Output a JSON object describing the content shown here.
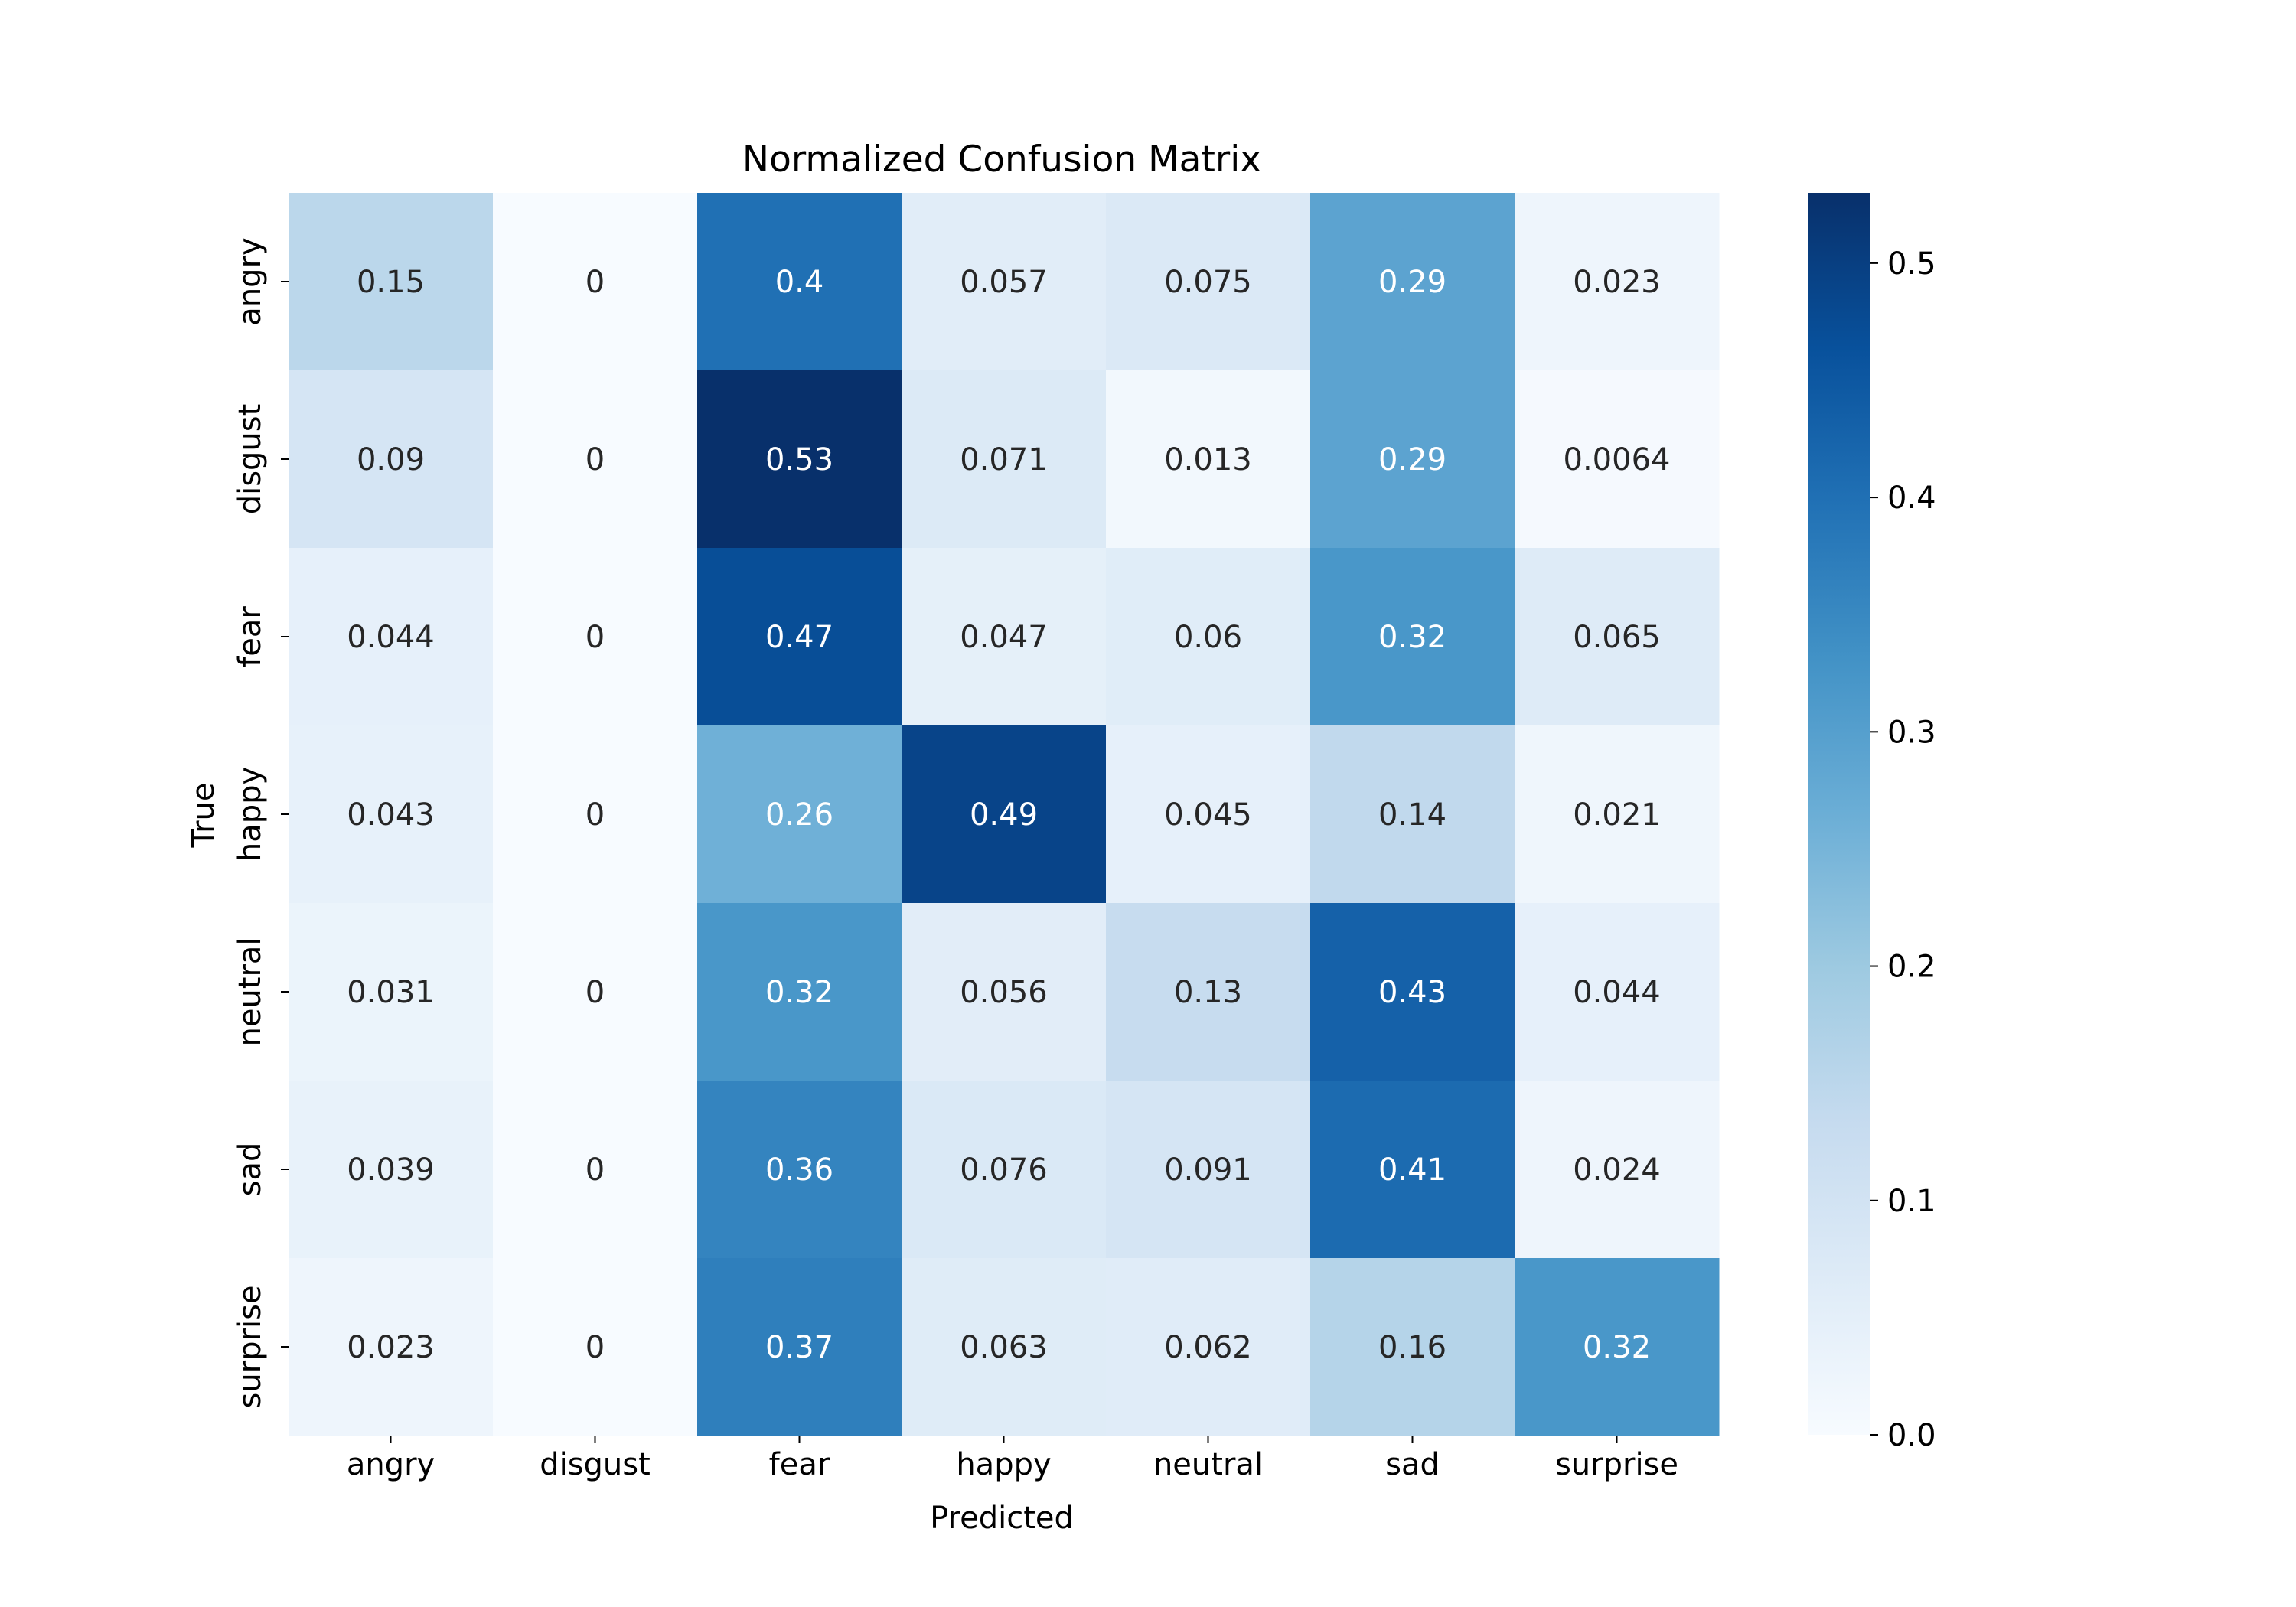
{
  "chart_data": {
    "type": "heatmap",
    "title": "Normalized Confusion Matrix",
    "xlabel": "Predicted",
    "ylabel": "True",
    "x_categories": [
      "angry",
      "disgust",
      "fear",
      "happy",
      "neutral",
      "sad",
      "surprise"
    ],
    "y_categories": [
      "angry",
      "disgust",
      "fear",
      "happy",
      "neutral",
      "sad",
      "surprise"
    ],
    "values": [
      [
        0.15,
        0,
        0.4,
        0.057,
        0.075,
        0.29,
        0.023
      ],
      [
        0.09,
        0,
        0.53,
        0.071,
        0.013,
        0.29,
        0.0064
      ],
      [
        0.044,
        0,
        0.47,
        0.047,
        0.06,
        0.32,
        0.065
      ],
      [
        0.043,
        0,
        0.26,
        0.49,
        0.045,
        0.14,
        0.021
      ],
      [
        0.031,
        0,
        0.32,
        0.056,
        0.13,
        0.43,
        0.044
      ],
      [
        0.039,
        0,
        0.36,
        0.076,
        0.091,
        0.41,
        0.024
      ],
      [
        0.023,
        0,
        0.37,
        0.063,
        0.062,
        0.16,
        0.32
      ]
    ],
    "value_labels": [
      [
        "0.15",
        "0",
        "0.4",
        "0.057",
        "0.075",
        "0.29",
        "0.023"
      ],
      [
        "0.09",
        "0",
        "0.53",
        "0.071",
        "0.013",
        "0.29",
        "0.0064"
      ],
      [
        "0.044",
        "0",
        "0.47",
        "0.047",
        "0.06",
        "0.32",
        "0.065"
      ],
      [
        "0.043",
        "0",
        "0.26",
        "0.49",
        "0.045",
        "0.14",
        "0.021"
      ],
      [
        "0.031",
        "0",
        "0.32",
        "0.056",
        "0.13",
        "0.43",
        "0.044"
      ],
      [
        "0.039",
        "0",
        "0.36",
        "0.076",
        "0.091",
        "0.41",
        "0.024"
      ],
      [
        "0.023",
        "0",
        "0.37",
        "0.063",
        "0.062",
        "0.16",
        "0.32"
      ]
    ],
    "colorbar": {
      "colormap": "Blues",
      "range": [
        0,
        0.53
      ],
      "ticks": [
        0.0,
        0.1,
        0.2,
        0.3,
        0.4,
        0.5
      ],
      "tick_labels": [
        "0.0",
        "0.1",
        "0.2",
        "0.3",
        "0.4",
        "0.5"
      ]
    },
    "colors": {
      "text_dark": "#262626",
      "text_light": "#ffffff"
    }
  }
}
